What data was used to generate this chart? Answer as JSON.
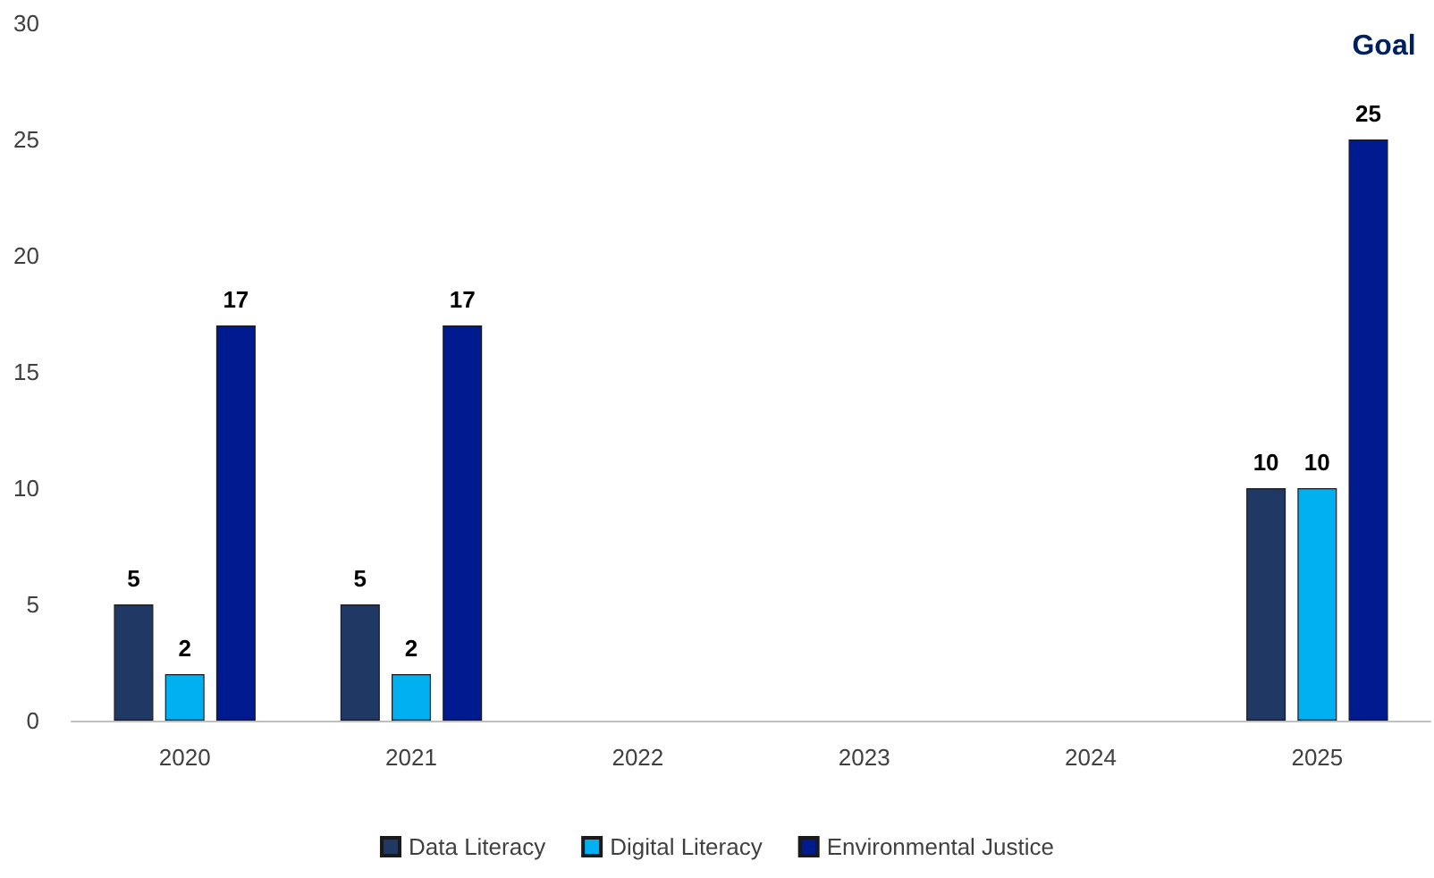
{
  "chart_data": {
    "type": "bar",
    "categories": [
      "2020",
      "2021",
      "2022",
      "2023",
      "2024",
      "2025"
    ],
    "series": [
      {
        "name": "Data Literacy",
        "color": "#203864",
        "values": [
          5,
          5,
          null,
          null,
          null,
          10
        ]
      },
      {
        "name": "Digital Literacy",
        "color": "#00b0f0",
        "values": [
          2,
          2,
          null,
          null,
          null,
          10
        ]
      },
      {
        "name": "Environmental Justice",
        "color": "#001a8f",
        "values": [
          17,
          17,
          null,
          null,
          null,
          25
        ]
      }
    ],
    "ylim": [
      0,
      30
    ],
    "yticks": [
      0,
      5,
      10,
      15,
      20,
      25,
      30
    ],
    "grid": false,
    "legend": "bottom",
    "data_labels": true,
    "annotations": [
      "Goal"
    ]
  }
}
